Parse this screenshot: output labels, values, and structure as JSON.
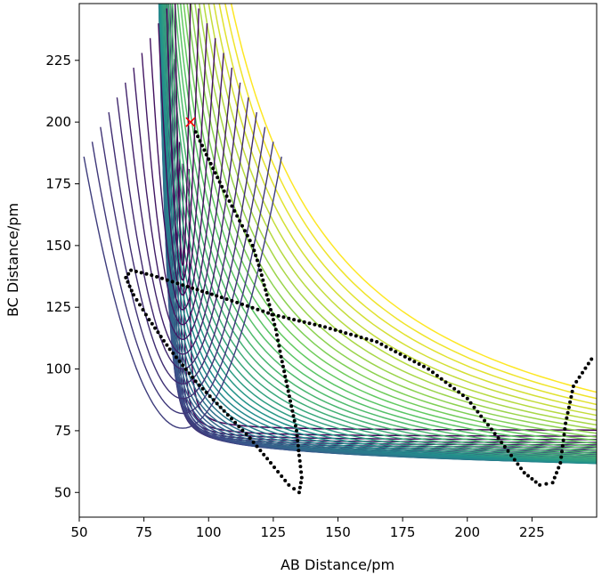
{
  "chart_data": {
    "type": "contour",
    "title": "",
    "xlabel": "AB Distance/pm",
    "ylabel": "BC Distance/pm",
    "xlim": [
      50,
      250
    ],
    "ylim": [
      40,
      248
    ],
    "x_ticks": [
      50,
      75,
      100,
      125,
      150,
      175,
      200,
      225
    ],
    "y_ticks": [
      50,
      75,
      100,
      125,
      150,
      175,
      200,
      225
    ],
    "x_tick_labels": [
      "50",
      "75",
      "100",
      "125",
      "150",
      "175",
      "200",
      "225"
    ],
    "y_tick_labels": [
      "50",
      "75",
      "100",
      "125",
      "150",
      "175",
      "200",
      "225"
    ],
    "grid": false,
    "legend": "none",
    "colormap": "viridis",
    "colormap_stops": [
      "#440154",
      "#3b528b",
      "#21918c",
      "#5ec962",
      "#fde725"
    ],
    "start_marker": {
      "x": 93,
      "y": 200,
      "symbol": "x",
      "color": "#ff0000"
    },
    "trajectory": {
      "color": "#000000",
      "points": [
        [
          95,
          196
        ],
        [
          100,
          185
        ],
        [
          106,
          172
        ],
        [
          112,
          160
        ],
        [
          117,
          150
        ],
        [
          120,
          140
        ],
        [
          123,
          128
        ],
        [
          126,
          116
        ],
        [
          128,
          105
        ],
        [
          130,
          95
        ],
        [
          132,
          85
        ],
        [
          134,
          75
        ],
        [
          135,
          65
        ],
        [
          136,
          56
        ],
        [
          135,
          50
        ],
        [
          131,
          53
        ],
        [
          124,
          62
        ],
        [
          116,
          72
        ],
        [
          106,
          83
        ],
        [
          95,
          95
        ],
        [
          85,
          108
        ],
        [
          77,
          120
        ],
        [
          71,
          130
        ],
        [
          68,
          137
        ],
        [
          70,
          140
        ],
        [
          78,
          138
        ],
        [
          90,
          134
        ],
        [
          105,
          129
        ],
        [
          125,
          122
        ],
        [
          145,
          117
        ],
        [
          165,
          111
        ],
        [
          185,
          100
        ],
        [
          200,
          88
        ],
        [
          212,
          72
        ],
        [
          222,
          58
        ],
        [
          228,
          53
        ],
        [
          233,
          54
        ],
        [
          236,
          62
        ],
        [
          238,
          78
        ],
        [
          241,
          93
        ],
        [
          248,
          104
        ]
      ]
    }
  }
}
